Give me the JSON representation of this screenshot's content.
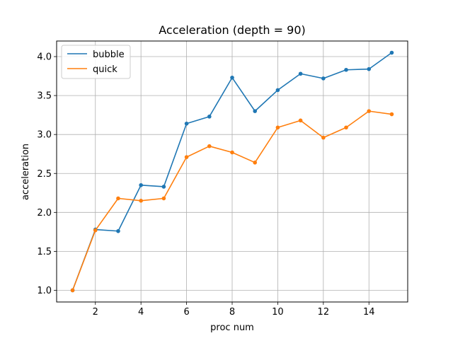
{
  "chart_data": {
    "type": "line",
    "title": "Acceleration (depth = 90)",
    "xlabel": "proc num",
    "ylabel": "acceleration",
    "x": [
      1,
      2,
      3,
      4,
      5,
      6,
      7,
      8,
      9,
      10,
      11,
      12,
      13,
      14,
      15
    ],
    "xlim": [
      0.3,
      15.7
    ],
    "ylim": [
      0.85,
      4.2
    ],
    "xticks": [
      2,
      4,
      6,
      8,
      10,
      12,
      14
    ],
    "xtick_labels": [
      "2",
      "4",
      "6",
      "8",
      "10",
      "12",
      "14"
    ],
    "yticks": [
      1.0,
      1.5,
      2.0,
      2.5,
      3.0,
      3.5,
      4.0
    ],
    "ytick_labels": [
      "1.0",
      "1.5",
      "2.0",
      "2.5",
      "3.0",
      "3.5",
      "4.0"
    ],
    "grid": true,
    "legend_position": "top-left",
    "series": [
      {
        "name": "bubble",
        "color": "#1f77b4",
        "values": [
          1.0,
          1.78,
          1.76,
          2.35,
          2.33,
          3.14,
          3.23,
          3.73,
          3.3,
          3.57,
          3.78,
          3.72,
          3.83,
          3.84,
          4.05
        ]
      },
      {
        "name": "quick",
        "color": "#ff7f0e",
        "values": [
          1.0,
          1.77,
          2.18,
          2.15,
          2.18,
          2.71,
          2.85,
          2.77,
          2.64,
          3.09,
          3.18,
          2.96,
          3.09,
          3.3,
          3.26
        ]
      }
    ]
  }
}
